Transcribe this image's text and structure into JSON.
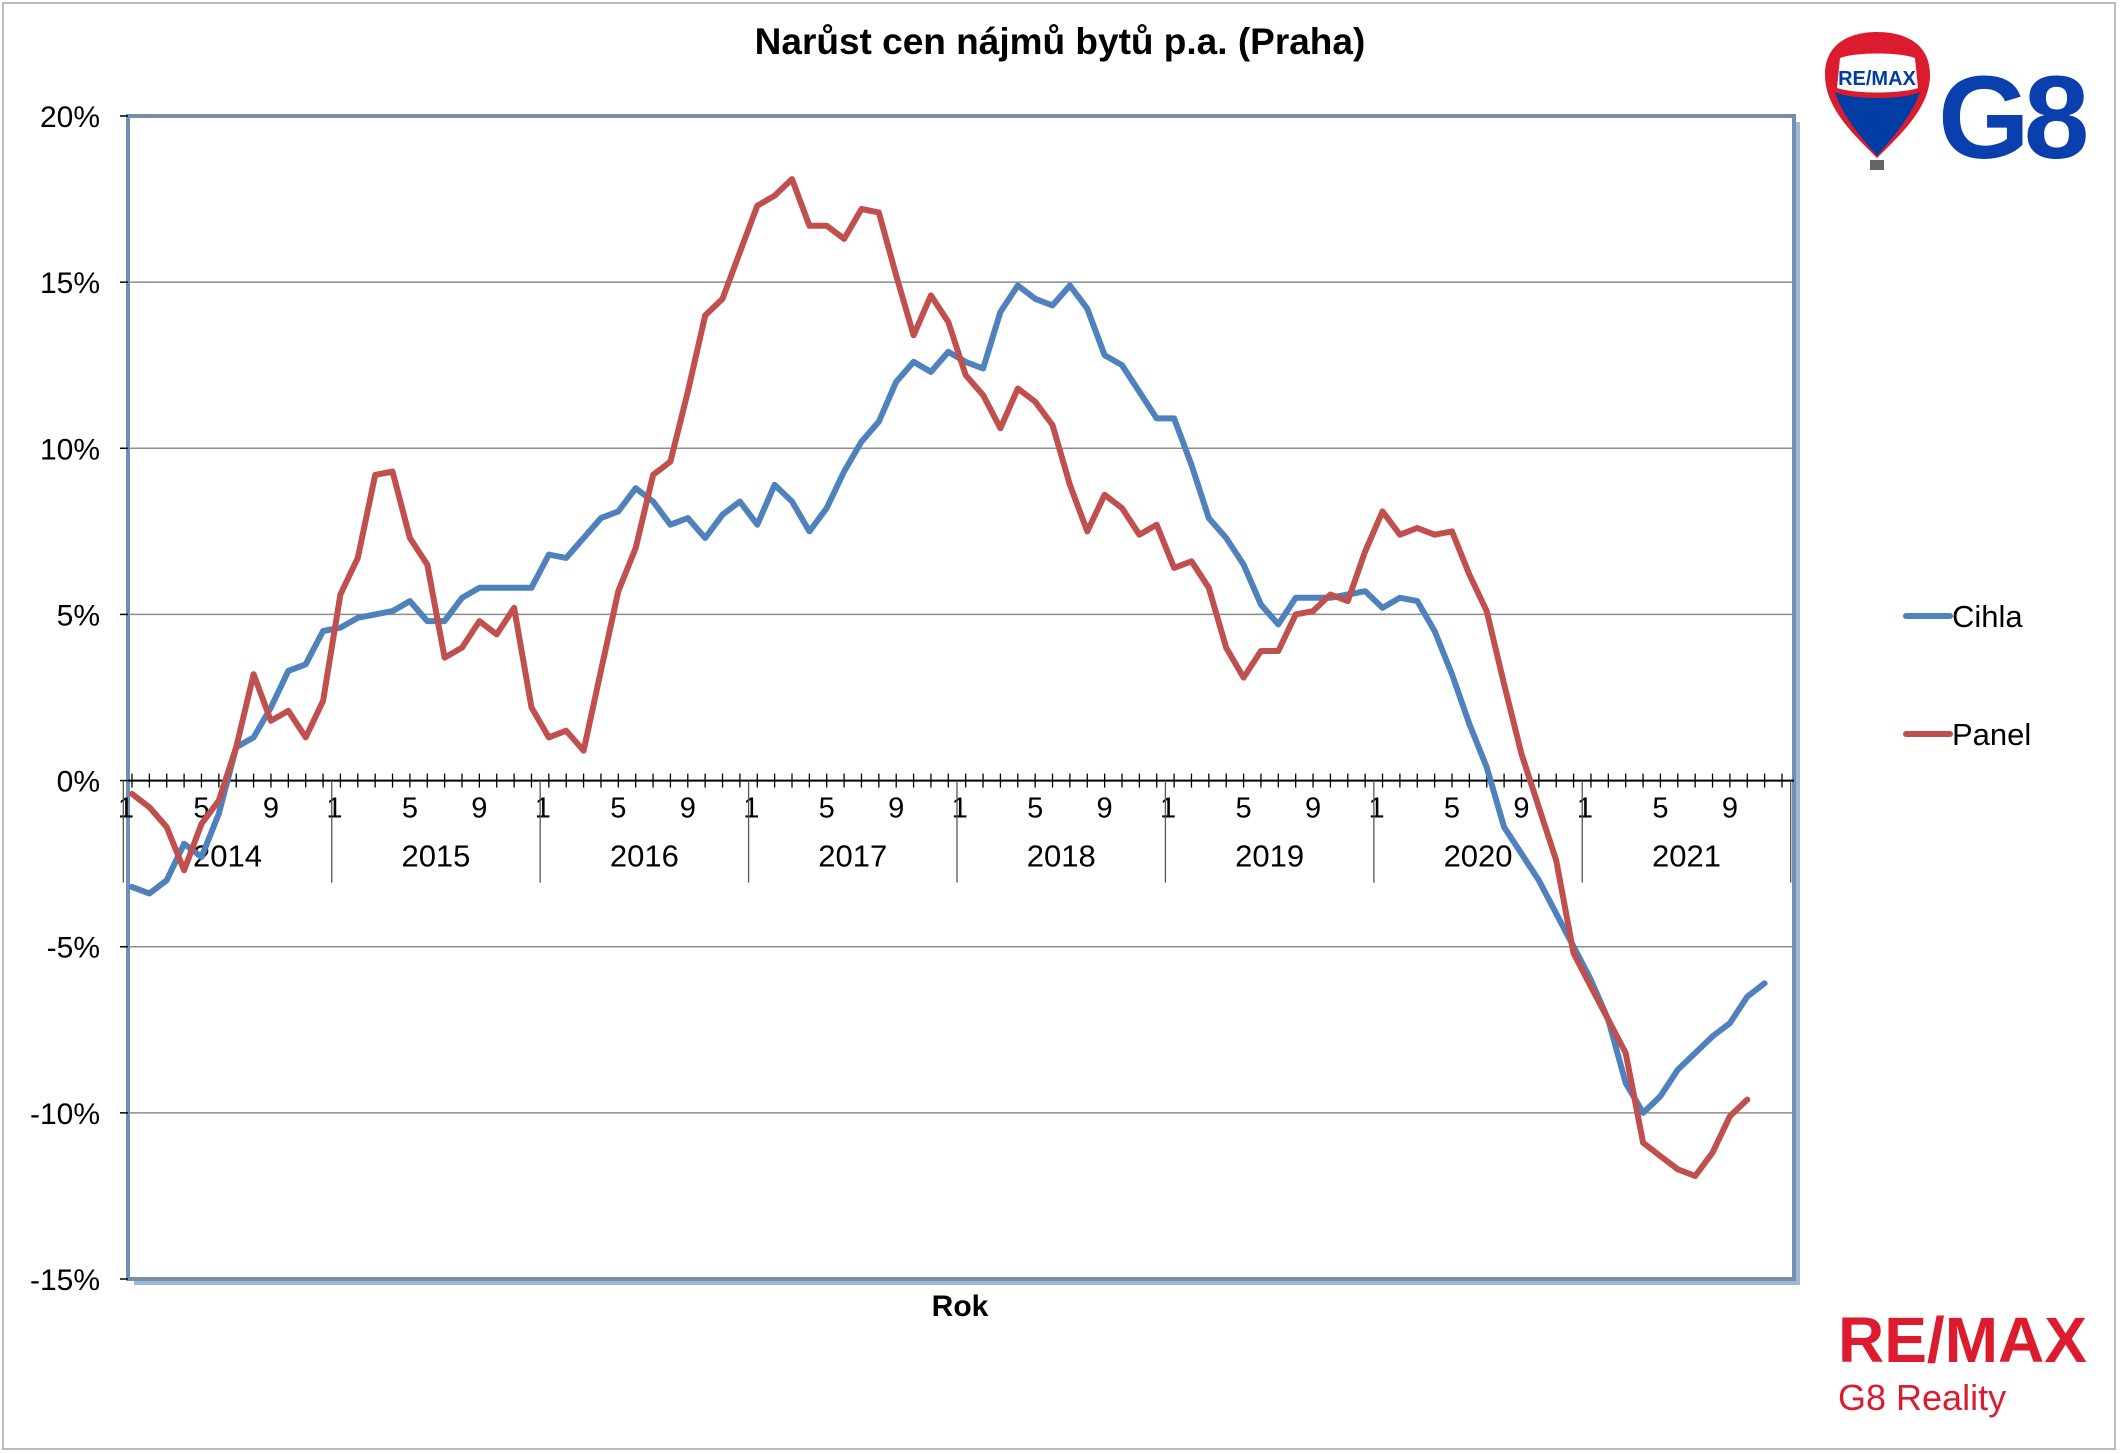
{
  "chart_data": {
    "type": "line",
    "title": "Narůst cen nájmů bytů p.a. (Praha)",
    "xlabel": "Rok",
    "ylabel": "",
    "ylim": [
      -15,
      20
    ],
    "y_ticks": [
      "20%",
      "15%",
      "10%",
      "5%",
      "0%",
      "-5%",
      "-10%",
      "-15%"
    ],
    "y_tick_values": [
      20,
      15,
      10,
      5,
      0,
      -5,
      -10,
      -15
    ],
    "month_tick_labels": [
      "1",
      "5",
      "9"
    ],
    "years": [
      "2014",
      "2015",
      "2016",
      "2017",
      "2018",
      "2019",
      "2020",
      "2021"
    ],
    "grid": true,
    "legend_position": "right",
    "series": [
      {
        "name": "Cihla",
        "color": "#4f81bd",
        "values": [
          -3.2,
          -3.4,
          -3.0,
          -1.9,
          -2.3,
          -1.0,
          1.0,
          1.3,
          2.2,
          3.3,
          3.5,
          4.5,
          4.6,
          4.9,
          5.0,
          5.1,
          5.4,
          4.8,
          4.8,
          5.5,
          5.8,
          5.8,
          5.8,
          5.8,
          6.8,
          6.7,
          7.3,
          7.9,
          8.1,
          8.8,
          8.4,
          7.7,
          7.9,
          7.3,
          8.0,
          8.4,
          7.7,
          8.9,
          8.4,
          7.5,
          8.2,
          9.3,
          10.2,
          10.8,
          12.0,
          12.6,
          12.3,
          12.9,
          12.6,
          12.4,
          14.1,
          14.9,
          14.5,
          14.3,
          14.9,
          14.2,
          12.8,
          12.5,
          11.7,
          10.9,
          10.9,
          9.5,
          7.9,
          7.3,
          6.5,
          5.3,
          4.7,
          5.5,
          5.5,
          5.5,
          5.6,
          5.7,
          5.2,
          5.5,
          5.4,
          4.5,
          3.2,
          1.7,
          0.4,
          -1.4,
          -2.2,
          -3.0,
          -4.0,
          -5.0,
          -6.0,
          -7.2,
          -9.1,
          -10.0,
          -9.5,
          -8.7,
          -8.2,
          -7.7,
          -7.3,
          -6.5,
          -6.1
        ]
      },
      {
        "name": "Panel",
        "color": "#c0504d",
        "values": [
          -0.4,
          -0.8,
          -1.4,
          -2.7,
          -1.3,
          -0.6,
          1.0,
          3.2,
          1.8,
          2.1,
          1.3,
          2.4,
          5.6,
          6.7,
          9.2,
          9.3,
          7.3,
          6.5,
          3.7,
          4.0,
          4.8,
          4.4,
          5.2,
          2.2,
          1.3,
          1.5,
          0.9,
          3.3,
          5.7,
          7.0,
          9.2,
          9.6,
          11.7,
          14.0,
          14.5,
          15.9,
          17.3,
          17.6,
          18.1,
          16.7,
          16.7,
          16.3,
          17.2,
          17.1,
          15.2,
          13.4,
          14.6,
          13.8,
          12.2,
          11.6,
          10.6,
          11.8,
          11.4,
          10.7,
          8.9,
          7.5,
          8.6,
          8.2,
          7.4,
          7.7,
          6.4,
          6.6,
          5.8,
          4.0,
          3.1,
          3.9,
          3.9,
          5.0,
          5.1,
          5.6,
          5.4,
          6.9,
          8.1,
          7.4,
          7.6,
          7.4,
          7.5,
          6.2,
          5.1,
          2.9,
          0.8,
          -0.8,
          -2.4,
          -5.2,
          -6.2,
          -7.2,
          -8.2,
          -10.9,
          -11.3,
          -11.7,
          -11.9,
          -11.2,
          -10.1,
          -9.6
        ]
      }
    ]
  },
  "logos": {
    "top_balloon_text": "RE/MAX",
    "top_brand_text": "G8",
    "bottom_brand": "RE/MAX",
    "bottom_subtitle": "G8 Reality"
  },
  "colors": {
    "remax_red": "#dc1c2e",
    "remax_blue": "#003da5",
    "g8_blue": "#0a3fae"
  }
}
